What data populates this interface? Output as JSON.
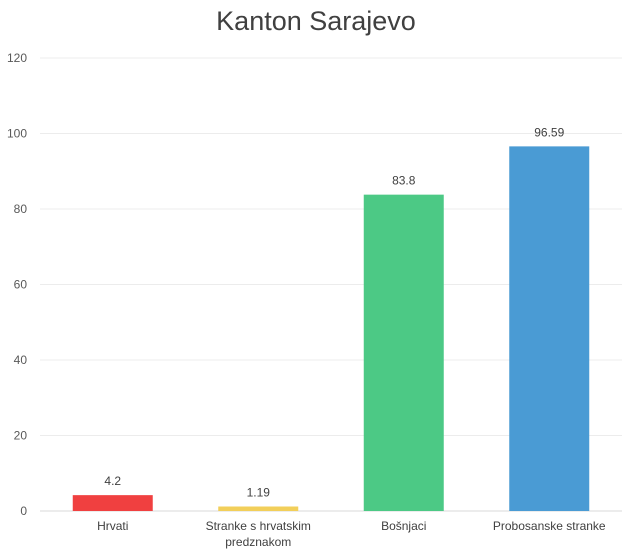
{
  "chart_data": {
    "type": "bar",
    "title": "Kanton Sarajevo",
    "categories": [
      [
        "Hrvati"
      ],
      [
        "Stranke s hrvatskim",
        "predznakom"
      ],
      [
        "Bošnjaci"
      ],
      [
        "Probosanske stranke"
      ]
    ],
    "values": [
      4.2,
      1.19,
      83.8,
      96.59
    ],
    "data_labels": [
      "4.2",
      "1.19",
      "83.8",
      "96.59"
    ],
    "colors": [
      "#f04040",
      "#f2cf5a",
      "#4cc985",
      "#4a9bd4"
    ],
    "yticks": [
      0,
      20,
      40,
      60,
      80,
      100,
      120
    ],
    "ylim": [
      0,
      120
    ],
    "grid": true,
    "xlabel": "",
    "ylabel": ""
  }
}
